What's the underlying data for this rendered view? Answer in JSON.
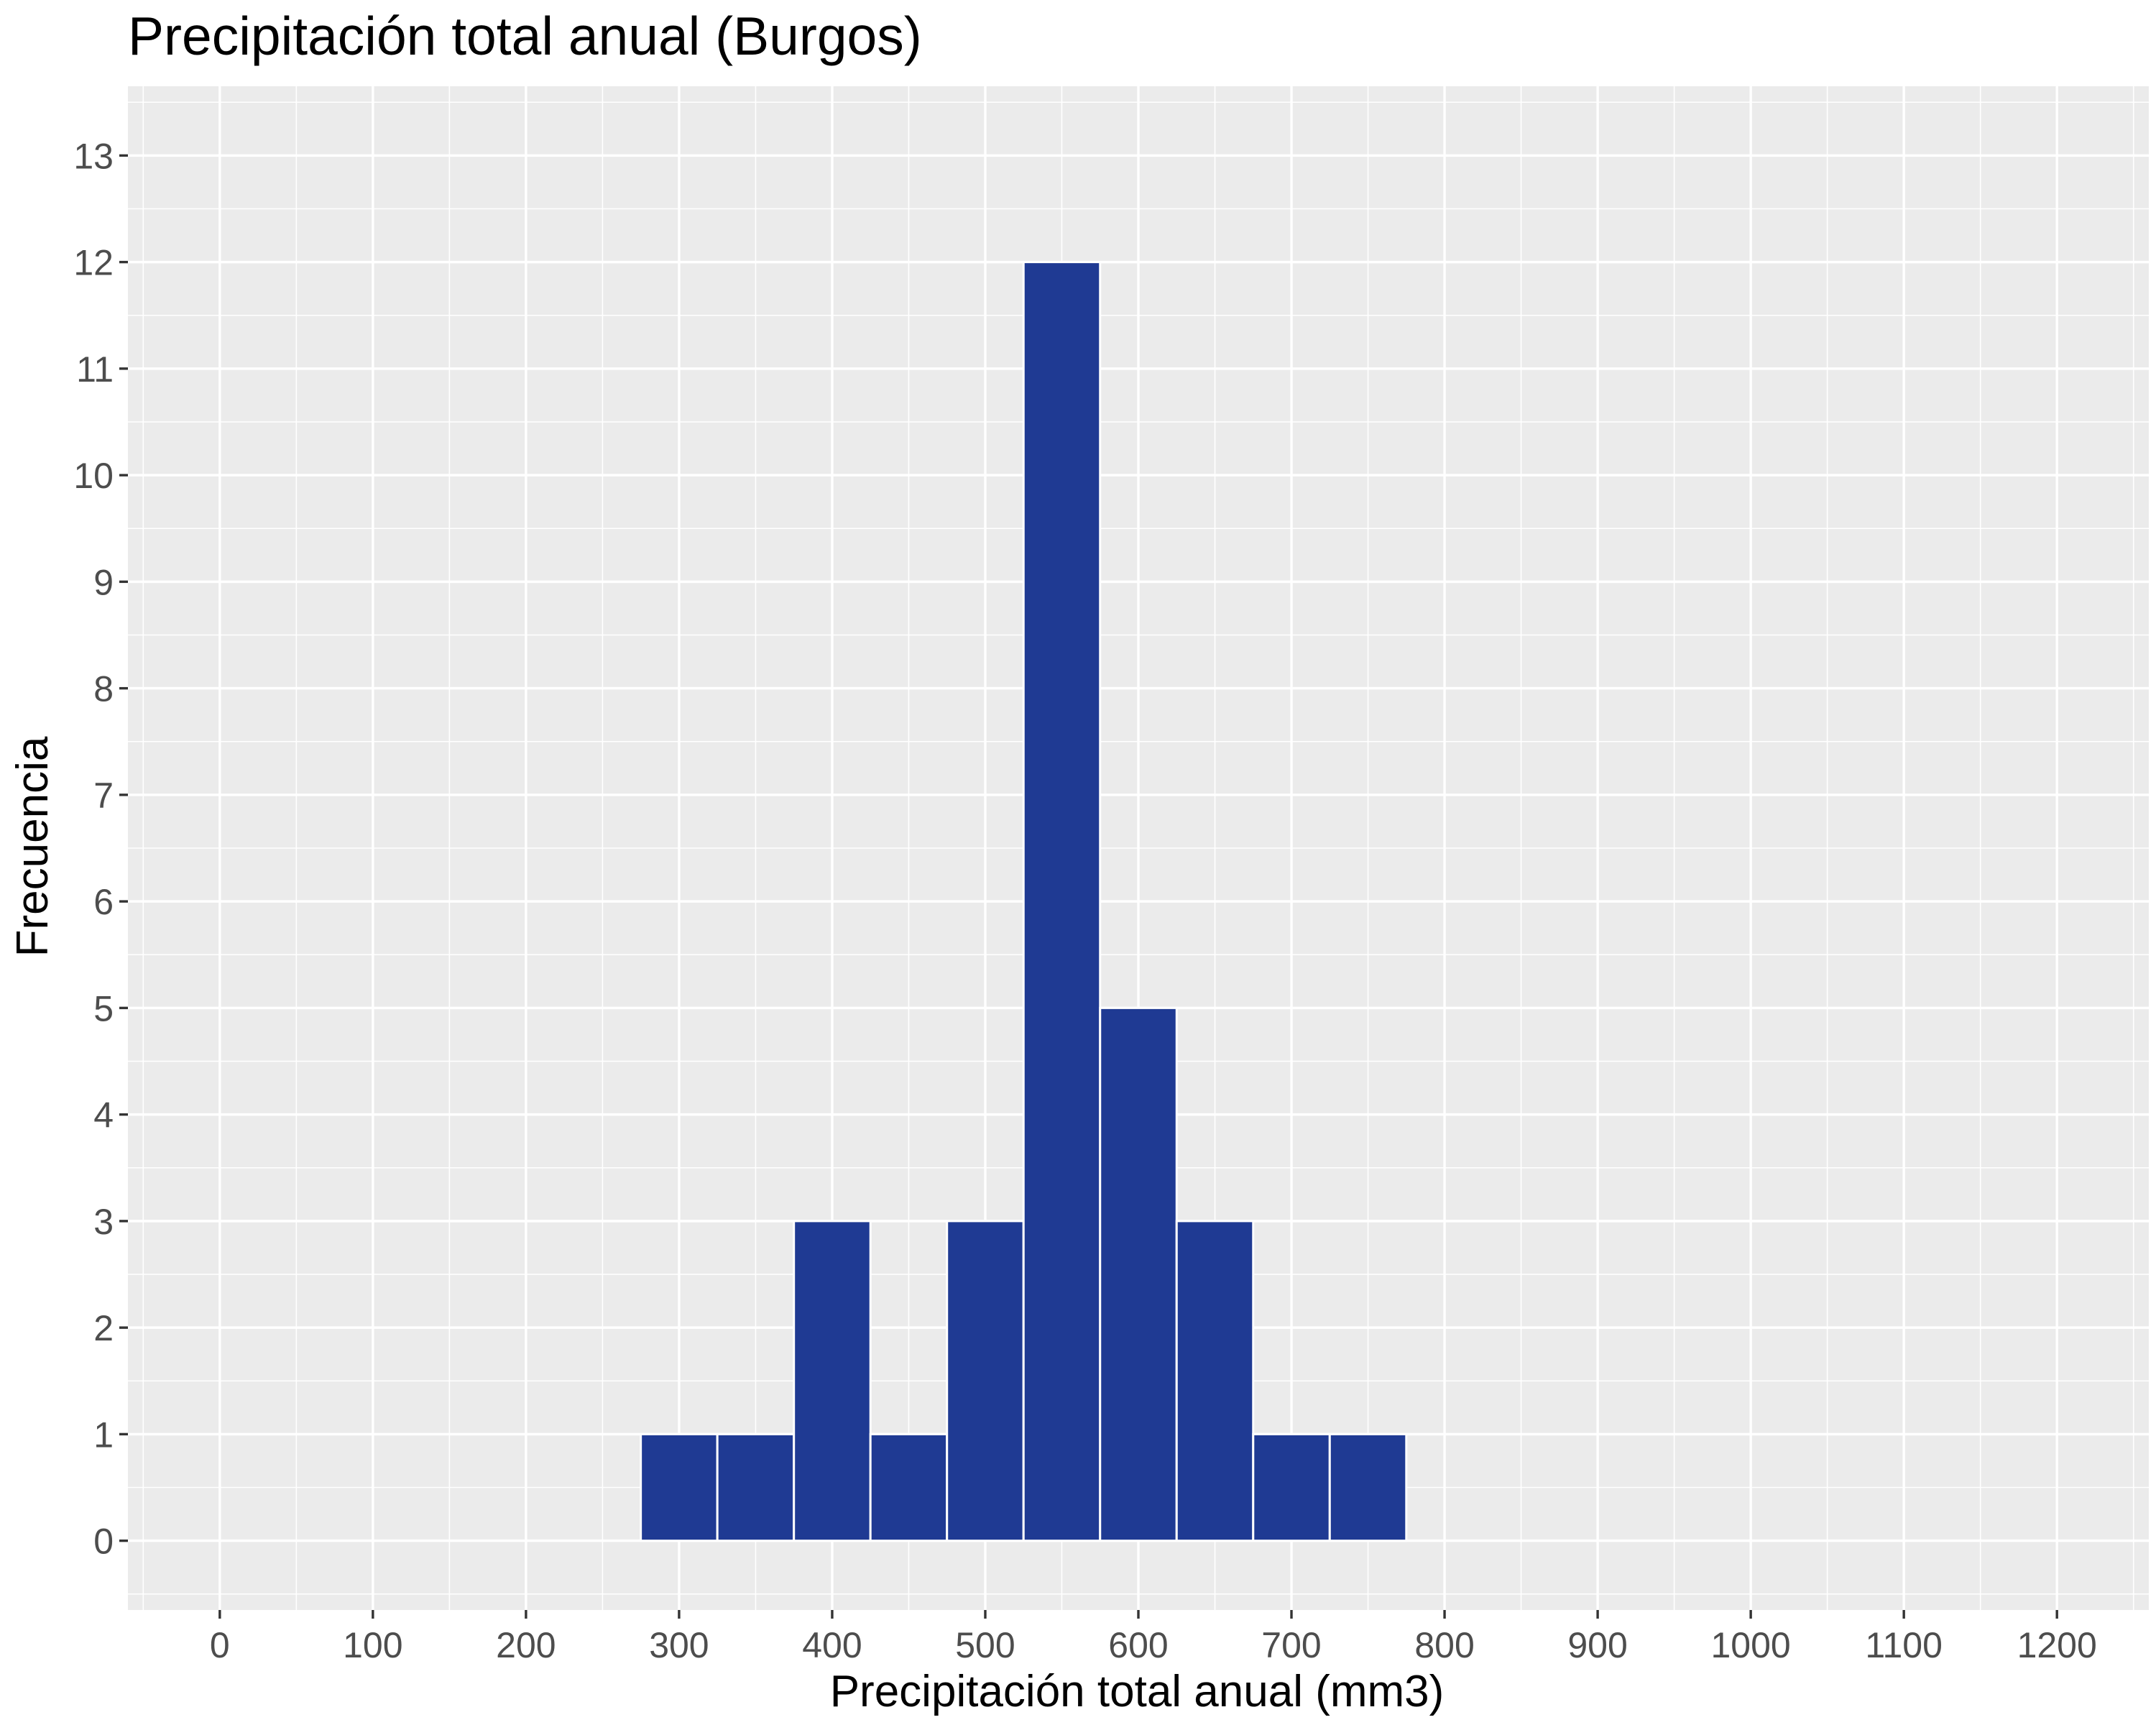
{
  "chart_data": {
    "type": "bar",
    "title": "Precipitación total anual (Burgos)",
    "xlabel": "Precipitación total anual (mm3)",
    "ylabel": "Frecuencia",
    "bin_width": 50,
    "bins": [
      {
        "x0": 275,
        "x1": 325,
        "count": 1
      },
      {
        "x0": 325,
        "x1": 375,
        "count": 1
      },
      {
        "x0": 375,
        "x1": 425,
        "count": 3
      },
      {
        "x0": 425,
        "x1": 475,
        "count": 1
      },
      {
        "x0": 475,
        "x1": 525,
        "count": 3
      },
      {
        "x0": 525,
        "x1": 575,
        "count": 12
      },
      {
        "x0": 575,
        "x1": 625,
        "count": 5
      },
      {
        "x0": 625,
        "x1": 675,
        "count": 3
      },
      {
        "x0": 675,
        "x1": 725,
        "count": 1
      },
      {
        "x0": 725,
        "x1": 775,
        "count": 1
      }
    ],
    "xlim": [
      -60,
      1260
    ],
    "ylim": [
      -0.65,
      13.65
    ],
    "x_ticks": [
      0,
      100,
      200,
      300,
      400,
      500,
      600,
      700,
      800,
      900,
      1000,
      1100,
      1200
    ],
    "x_tick_labels": [
      "0",
      "100",
      "200",
      "300",
      "400",
      "500",
      "600",
      "700",
      "800",
      "900",
      "1000",
      "1100",
      "1200"
    ],
    "y_ticks": [
      0,
      1,
      2,
      3,
      4,
      5,
      6,
      7,
      8,
      9,
      10,
      11,
      12,
      13
    ],
    "y_tick_labels": [
      "0",
      "1",
      "2",
      "3",
      "4",
      "5",
      "6",
      "7",
      "8",
      "9",
      "10",
      "11",
      "12",
      "13"
    ],
    "grid": true,
    "colors": {
      "bar_fill": "#1f3a93",
      "bar_edge": "#ffffff",
      "panel": "#ebebeb",
      "grid": "#ffffff"
    }
  }
}
